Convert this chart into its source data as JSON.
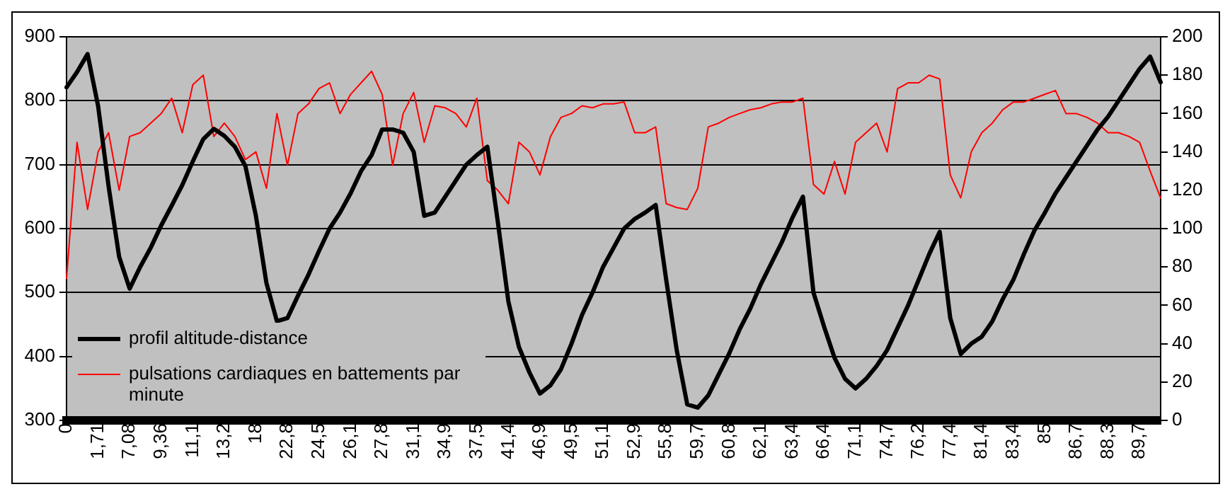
{
  "chart_data": {
    "type": "line",
    "categories": [
      "0",
      null,
      null,
      "1,71",
      null,
      null,
      "7,08",
      null,
      null,
      "9,36",
      null,
      null,
      "11,1",
      null,
      null,
      "13,2",
      null,
      null,
      "18",
      null,
      null,
      "22,8",
      null,
      null,
      "24,5",
      null,
      null,
      "26,1",
      null,
      null,
      "27,8",
      null,
      null,
      "31,1",
      null,
      null,
      "34,9",
      null,
      null,
      "37,5",
      null,
      null,
      "41,4",
      null,
      null,
      "46,9",
      null,
      null,
      "49,5",
      null,
      null,
      "51,1",
      null,
      null,
      "52,9",
      null,
      null,
      "55,8",
      null,
      null,
      "59,7",
      null,
      null,
      "60,8",
      null,
      null,
      "62,1",
      null,
      null,
      "63,4",
      null,
      null,
      "66,4",
      null,
      null,
      "71,1",
      null,
      null,
      "74,7",
      null,
      null,
      "76,2",
      null,
      null,
      "77,4",
      null,
      null,
      "81,4",
      null,
      null,
      "83,4",
      null,
      null,
      "85",
      null,
      null,
      "86,7",
      null,
      null,
      "88,3",
      null,
      null,
      "89,7",
      null,
      null
    ],
    "series": [
      {
        "name": "profil altitude-distance",
        "color": "#000000",
        "values": [
          821,
          845,
          873,
          792,
          666,
          556,
          506,
          540,
          570,
          605,
          636,
          668,
          705,
          740,
          756,
          745,
          728,
          698,
          620,
          515,
          455,
          460,
          495,
          528,
          565,
          600,
          625,
          655,
          690,
          715,
          755,
          755,
          750,
          720,
          620,
          625,
          650,
          675,
          700,
          715,
          728,
          610,
          486,
          415,
          375,
          342,
          355,
          380,
          420,
          465,
          500,
          540,
          570,
          600,
          615,
          625,
          637,
          520,
          410,
          325,
          320,
          339,
          372,
          405,
          443,
          475,
          513,
          546,
          579,
          617,
          650,
          500,
          447,
          398,
          365,
          350,
          365,
          385,
          410,
          445,
          480,
          520,
          560,
          595,
          460,
          404,
          420,
          431,
          455,
          490,
          520,
          560,
          597,
          625,
          655,
          680,
          705,
          730,
          755,
          775,
          800,
          825,
          850,
          869,
          829
        ]
      },
      {
        "name": "pulsations cardiaques en battements par minute",
        "color": "#ff0000",
        "axis": "y2",
        "values": [
          74,
          145,
          110,
          140,
          150,
          120,
          148,
          150,
          155,
          160,
          168,
          150,
          175,
          180,
          148,
          155,
          148,
          136,
          140,
          121,
          160,
          133,
          160,
          165,
          173,
          176,
          160,
          170,
          176,
          182,
          170,
          133,
          160,
          171,
          145,
          164,
          163,
          160,
          153,
          168,
          125,
          120,
          113,
          145,
          140,
          128,
          148,
          158,
          160,
          164,
          163,
          165,
          165,
          166,
          150,
          150,
          153,
          113,
          111,
          110,
          121,
          153,
          155,
          158,
          160,
          162,
          163,
          165,
          166,
          166,
          168,
          123,
          118,
          135,
          118,
          145,
          150,
          155,
          140,
          173,
          176,
          176,
          180,
          178,
          128,
          116,
          140,
          150,
          155,
          162,
          166,
          166,
          168,
          170,
          172,
          160,
          160,
          158,
          155,
          150,
          150,
          148,
          145,
          130,
          116
        ]
      }
    ],
    "ylim": [
      300,
      900
    ],
    "yticks": [
      300,
      400,
      500,
      600,
      700,
      800,
      900
    ],
    "y2lim": [
      0,
      200
    ],
    "y2ticks": [
      0,
      20,
      40,
      60,
      80,
      100,
      120,
      140,
      160,
      180,
      200
    ],
    "grid": "y",
    "legend": "bottom left",
    "marker": "none",
    "line_style": "solid"
  }
}
